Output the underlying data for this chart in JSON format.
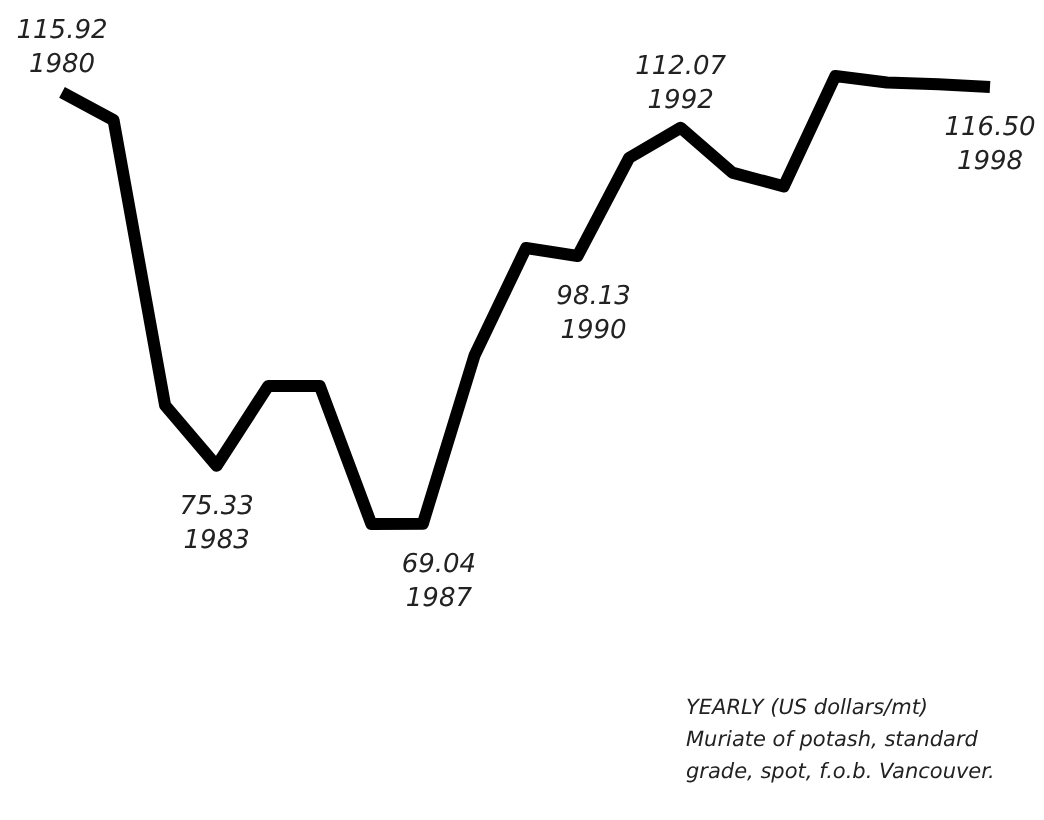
{
  "chart_data": {
    "type": "line",
    "categories": [
      "1980",
      null,
      null,
      "1983",
      null,
      null,
      null,
      "1987",
      null,
      null,
      "1990",
      null,
      "1992",
      null,
      null,
      null,
      null,
      null,
      "1998"
    ],
    "series": [
      {
        "color": "#000000",
        "values": [
          115.92,
          112.9,
          81.9,
          75.33,
          84.0,
          84.0,
          69.0,
          69.04,
          87.3,
          99.0,
          98.13,
          108.8,
          112.07,
          107.2,
          105.7,
          117.7,
          117.0,
          116.8,
          116.5
        ],
        "value_labels": [
          "115.92",
          null,
          null,
          "75.33",
          null,
          null,
          null,
          "69.04",
          null,
          null,
          "98.13",
          null,
          "112.07",
          null,
          null,
          null,
          null,
          null,
          "116.50"
        ]
      }
    ],
    "tick_labels": false,
    "legend": false,
    "marker": "none",
    "line_style": "solid",
    "annotations": [
      "YEARLY (US dollars/mt)",
      "Muriate of potash, standard grade, spot, f.o.b. Vancouver."
    ]
  }
}
